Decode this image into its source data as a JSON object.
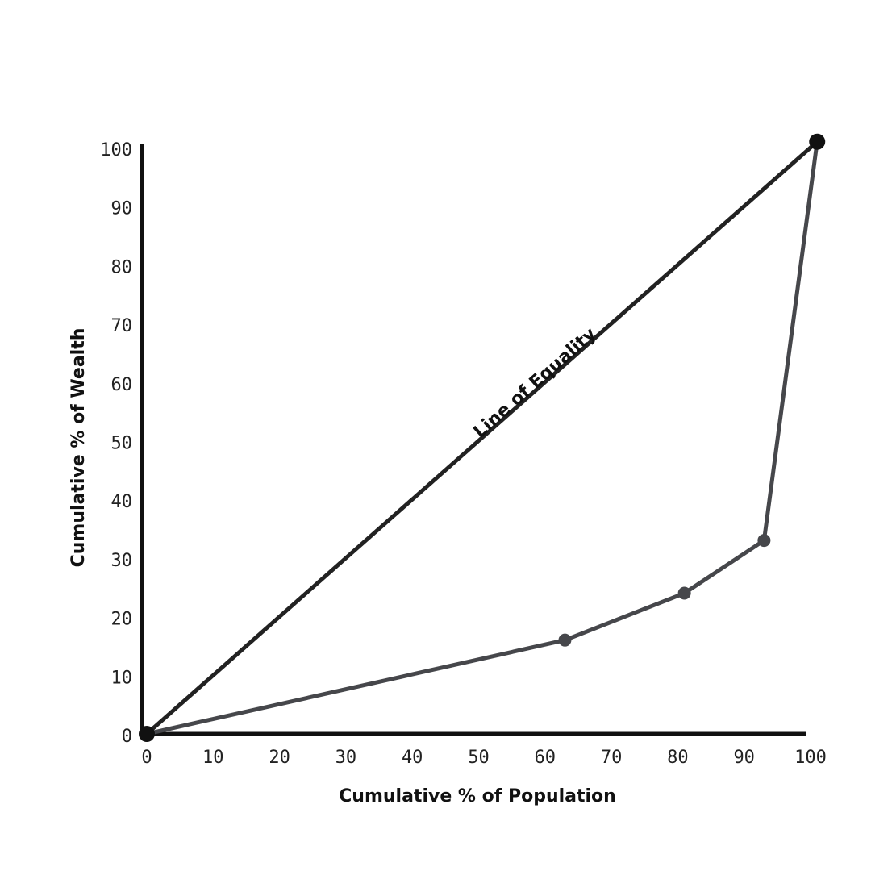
{
  "chart_data": {
    "type": "line",
    "x_label": "Cumulative % of Population",
    "y_label": "Cumulative % of Wealth",
    "xlim": [
      0,
      100
    ],
    "ylim": [
      0,
      100
    ],
    "xticks": [
      0,
      10,
      20,
      30,
      40,
      50,
      60,
      70,
      80,
      90,
      100
    ],
    "yticks": [
      0,
      10,
      20,
      30,
      40,
      50,
      60,
      70,
      80,
      90,
      100
    ],
    "series": [
      {
        "name": "Line of Equality",
        "color": "#222222",
        "x": [
          0,
          101
        ],
        "values": [
          0,
          101
        ]
      },
      {
        "color": "#46474b",
        "x": [
          0,
          63,
          81,
          93,
          101
        ],
        "values": [
          0,
          16,
          24,
          33,
          101
        ]
      }
    ]
  }
}
